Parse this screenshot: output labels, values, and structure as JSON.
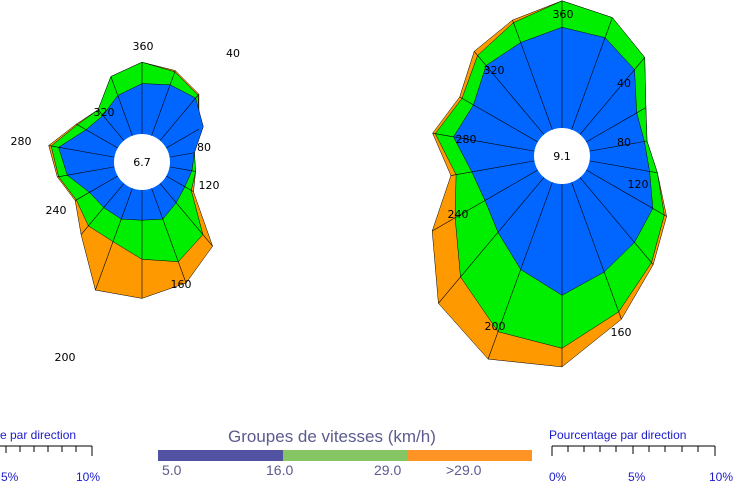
{
  "chart_data": [
    {
      "type": "rose",
      "center_label": "6.7",
      "direction_labels": [
        "40",
        "80",
        "120",
        "160",
        "200",
        "240",
        "280",
        "320",
        "360"
      ],
      "sector_step_deg": 20,
      "directions_deg": [
        0,
        20,
        40,
        60,
        80,
        100,
        120,
        140,
        160,
        180,
        200,
        220,
        240,
        260,
        280,
        300,
        320,
        340
      ],
      "series": [
        {
          "range": "5.0-16.0",
          "values": [
            4.0,
            4.3,
            4.4,
            3.4,
            2.0,
            1.8,
            1.7,
            2.0,
            2.6,
            2.4,
            2.6,
            2.5,
            2.6,
            3.8,
            4.5,
            2.9,
            2.6,
            3.4
          ]
        },
        {
          "range": "16.0-29.0",
          "values": [
            5.7,
            5.4,
            4.7,
            3.0,
            2.0,
            2.1,
            2.3,
            5.3,
            6.2,
            5.5,
            4.5,
            4.4,
            3.8,
            4.5,
            5.1,
            3.7,
            3.2,
            5.0
          ]
        },
        {
          "range": ">29.0",
          "values": [
            5.7,
            5.5,
            4.8,
            3.0,
            2.0,
            2.1,
            2.5,
            6.5,
            8.0,
            8.6,
            8.6,
            5.3,
            3.9,
            4.6,
            5.3,
            3.8,
            3.2,
            5.0
          ]
        }
      ]
    },
    {
      "type": "rose",
      "center_label": "9.1",
      "direction_labels": [
        "360",
        "40",
        "80",
        "120",
        "160",
        "200",
        "240",
        "280",
        "320"
      ],
      "sector_step_deg": 20,
      "directions_deg": [
        0,
        20,
        40,
        60,
        80,
        100,
        120,
        140,
        160,
        180,
        200,
        220,
        240,
        260,
        280,
        300,
        320,
        340
      ],
      "series": [
        {
          "range": "5.0-16.0",
          "values": [
            3.8,
            3.7,
            3.2,
            2.2,
            2.1,
            2.3,
            2.9,
            3.2,
            3.6,
            4.2,
            3.5,
            2.7,
            2.3,
            2.4,
            3.1,
            2.8,
            3.4,
            3.5
          ]
        },
        {
          "range": "16.0-29.0",
          "values": [
            4.8,
            4.5,
            3.8,
            2.6,
            2.2,
            2.6,
            3.4,
            4.2,
            5.2,
            6.2,
            6.0,
            4.9,
            3.6,
            3.0,
            3.8,
            3.3,
            3.9,
            4.3
          ]
        },
        {
          "range": ">29.0",
          "values": [
            4.8,
            4.5,
            3.8,
            2.6,
            2.2,
            2.6,
            3.5,
            4.3,
            5.5,
            6.9,
            7.1,
            6.2,
            4.6,
            3.2,
            3.9,
            3.4,
            4.1,
            4.4
          ]
        }
      ]
    }
  ],
  "legend": {
    "title": "Groupes de vitesses (km/h)",
    "labels": [
      "5.0",
      "16.0",
      "29.0",
      ">29.0"
    ],
    "colors": [
      "#5252a3",
      "#86c564",
      "#ff9326"
    ]
  },
  "rose_colors": {
    "low": "#0066ff",
    "mid": "#00ee00",
    "high": "#ff9900"
  },
  "scale_left": {
    "title": "e par direction",
    "ticks": [
      "5%",
      "10%"
    ]
  },
  "scale_right": {
    "title": "Pourcentage par direction",
    "ticks": [
      "0%",
      "5%",
      "10%"
    ]
  }
}
